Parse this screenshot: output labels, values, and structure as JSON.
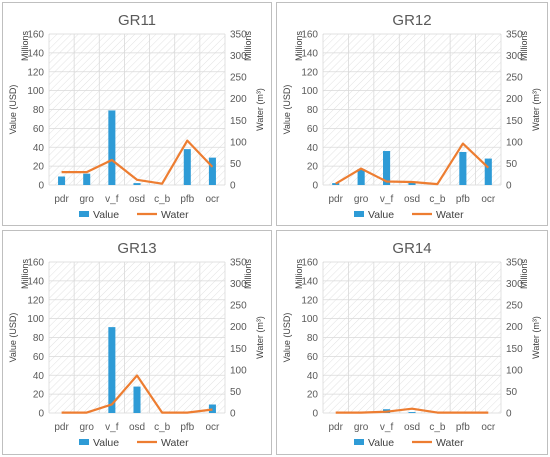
{
  "colors": {
    "value_bar": "#2e9bd6",
    "water_line": "#ed7d31",
    "grid": "#d9d9d9",
    "text": "#595959"
  },
  "chart_data": [
    {
      "type": "bar+line",
      "title": "GR11",
      "categories": [
        "pdr",
        "gro",
        "v_f",
        "osd",
        "c_b",
        "pfb",
        "ocr"
      ],
      "series": [
        {
          "name": "Value",
          "type": "bar",
          "axis": "left",
          "values": [
            9,
            12,
            79,
            2,
            0,
            38,
            29
          ]
        },
        {
          "name": "Water",
          "type": "line",
          "axis": "right",
          "values": [
            30,
            30,
            58,
            12,
            3,
            103,
            42
          ]
        }
      ],
      "ylabel": "Value (USD)",
      "y2label": "Water (m³)",
      "unit_left": "Millions",
      "unit_right": "Millions",
      "ylim": [
        0,
        160
      ],
      "y2lim": [
        0,
        350
      ],
      "yticks": [
        "0",
        "20",
        "40",
        "60",
        "80",
        "100",
        "120",
        "140",
        "160"
      ],
      "y2ticks": [
        "0",
        "50",
        "100",
        "150",
        "200",
        "250",
        "300",
        "350"
      ],
      "legend": "bottom",
      "grid": true
    },
    {
      "type": "bar+line",
      "title": "GR12",
      "categories": [
        "pdr",
        "gro",
        "v_f",
        "osd",
        "c_b",
        "pfb",
        "ocr"
      ],
      "series": [
        {
          "name": "Value",
          "type": "bar",
          "axis": "left",
          "values": [
            2,
            17,
            36,
            3,
            0,
            35,
            28
          ]
        },
        {
          "name": "Water",
          "type": "line",
          "axis": "right",
          "values": [
            3,
            38,
            8,
            7,
            2,
            96,
            40
          ]
        }
      ],
      "ylabel": "Value (USD)",
      "y2label": "Water (m³)",
      "unit_left": "Millions",
      "unit_right": "Millions",
      "ylim": [
        0,
        160
      ],
      "y2lim": [
        0,
        350
      ],
      "yticks": [
        "0",
        "20",
        "40",
        "60",
        "80",
        "100",
        "120",
        "140",
        "160"
      ],
      "y2ticks": [
        "0",
        "50",
        "100",
        "150",
        "200",
        "250",
        "300",
        "350"
      ],
      "legend": "bottom",
      "grid": true
    },
    {
      "type": "bar+line",
      "title": "GR13",
      "categories": [
        "pdr",
        "gro",
        "v_f",
        "osd",
        "c_b",
        "pfb",
        "ocr"
      ],
      "series": [
        {
          "name": "Value",
          "type": "bar",
          "axis": "left",
          "values": [
            0,
            0,
            91,
            28,
            0,
            0,
            9
          ]
        },
        {
          "name": "Water",
          "type": "line",
          "axis": "right",
          "values": [
            1,
            1,
            20,
            87,
            1,
            1,
            8
          ]
        }
      ],
      "ylabel": "Value (USD)",
      "y2label": "Water (m³)",
      "unit_left": "Millions",
      "unit_right": "Millions",
      "ylim": [
        0,
        160
      ],
      "y2lim": [
        0,
        350
      ],
      "yticks": [
        "0",
        "20",
        "40",
        "60",
        "80",
        "100",
        "120",
        "140",
        "160"
      ],
      "y2ticks": [
        "0",
        "50",
        "100",
        "150",
        "200",
        "250",
        "300",
        "350"
      ],
      "legend": "bottom",
      "grid": true
    },
    {
      "type": "bar+line",
      "title": "GR14",
      "categories": [
        "pdr",
        "gro",
        "v_f",
        "osd",
        "c_b",
        "pfb",
        "ocr"
      ],
      "series": [
        {
          "name": "Value",
          "type": "bar",
          "axis": "left",
          "values": [
            0,
            0,
            4,
            1,
            0,
            0,
            0
          ]
        },
        {
          "name": "Water",
          "type": "line",
          "axis": "right",
          "values": [
            1,
            1,
            3,
            10,
            1,
            1,
            1
          ]
        }
      ],
      "ylabel": "Value (USD)",
      "y2label": "Water (m³)",
      "unit_left": "Millions",
      "unit_right": "Millions",
      "ylim": [
        0,
        160
      ],
      "y2lim": [
        0,
        350
      ],
      "yticks": [
        "0",
        "20",
        "40",
        "60",
        "80",
        "100",
        "120",
        "140",
        "160"
      ],
      "y2ticks": [
        "0",
        "50",
        "100",
        "150",
        "200",
        "250",
        "300",
        "350"
      ],
      "legend": "bottom",
      "grid": true
    }
  ]
}
